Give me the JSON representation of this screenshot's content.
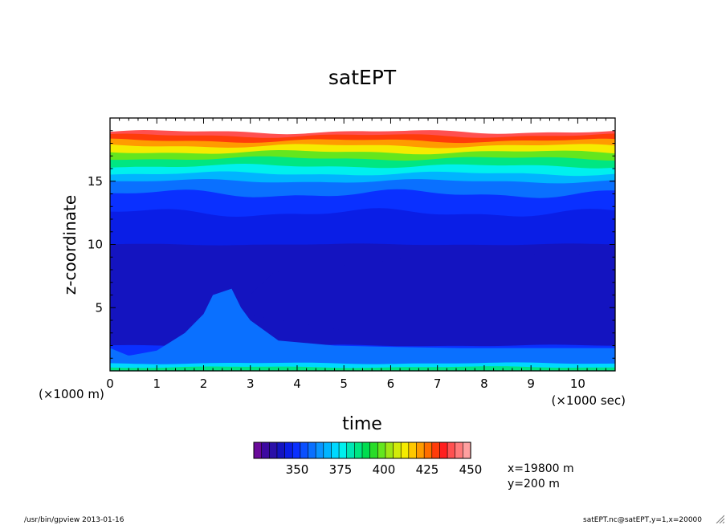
{
  "chart_data": {
    "type": "heatmap",
    "title": "satEPT",
    "xlabel": "time",
    "ylabel": "z-coordinate",
    "x_units": "(×1000 sec)",
    "y_units": "(×1000 m)",
    "x_ticks": [
      0,
      1,
      2,
      3,
      4,
      5,
      6,
      7,
      8,
      9,
      10
    ],
    "y_ticks": [
      5,
      10,
      15
    ],
    "xlim": [
      0,
      10.8
    ],
    "ylim": [
      0,
      20
    ],
    "colorbar": {
      "ticks": [
        350,
        375,
        400,
        425,
        450
      ],
      "range": [
        325,
        450
      ],
      "step": 5,
      "colors": [
        "#6a0a9a",
        "#3d0aa0",
        "#2a10a8",
        "#1414c0",
        "#0a1ee6",
        "#0a30ff",
        "#0a50ff",
        "#0a70ff",
        "#0a95ff",
        "#00b4ff",
        "#00d8ff",
        "#00f0ee",
        "#00e6b4",
        "#00e682",
        "#00dc50",
        "#28dc28",
        "#64e61e",
        "#a0e614",
        "#d2eb0a",
        "#f5eb00",
        "#ffc800",
        "#ff9b00",
        "#ff6e00",
        "#ff3c0a",
        "#ff1e1e",
        "#ff5050",
        "#ff7a7a",
        "#ffa0a0"
      ]
    },
    "stratification": [
      {
        "z_top": 0.3,
        "value": 390
      },
      {
        "z_top": 0.6,
        "value": 375
      },
      {
        "z_top": 1.2,
        "value": 360
      },
      {
        "z_top": 2.0,
        "value": 352
      },
      {
        "z_top": 10.0,
        "value": 342
      },
      {
        "z_top": 12.5,
        "value": 345
      },
      {
        "z_top": 14.0,
        "value": 350
      },
      {
        "z_top": 15.0,
        "value": 360
      },
      {
        "z_top": 15.6,
        "value": 370
      },
      {
        "z_top": 16.2,
        "value": 380
      },
      {
        "z_top": 16.8,
        "value": 392
      },
      {
        "z_top": 17.3,
        "value": 405
      },
      {
        "z_top": 17.8,
        "value": 418
      },
      {
        "z_top": 18.2,
        "value": 430
      },
      {
        "z_top": 18.6,
        "value": 440
      },
      {
        "z_top": 18.9,
        "value": 450
      }
    ],
    "annotations": [
      "x=19800 m",
      "y=200 m"
    ]
  },
  "footer": {
    "left": "/usr/bin/gpview  2013-01-16",
    "right": "satEPT.nc@satEPT,y=1,x=20000"
  },
  "icons": {
    "resize": "resize-grip-icon"
  }
}
